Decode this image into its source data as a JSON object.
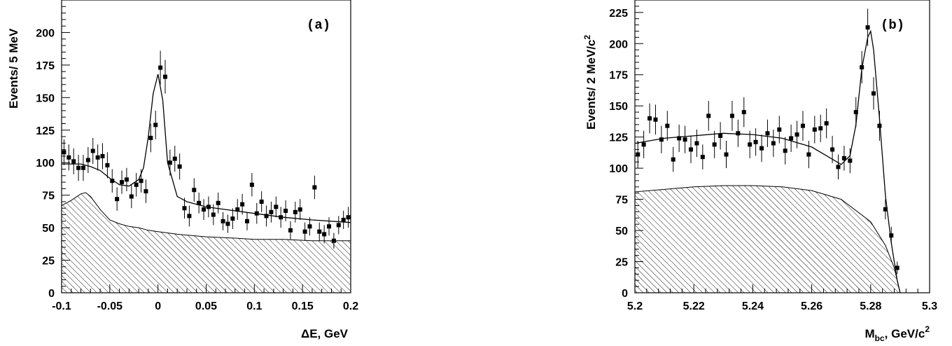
{
  "chart_data": [
    {
      "type": "scatter",
      "panel_label": "(a)",
      "xlabel": "ΔE, GeV",
      "ylabel": "Events/ 5 MeV",
      "xlim": [
        -0.1,
        0.2
      ],
      "ylim": [
        0,
        225
      ],
      "x_ticks": [
        -0.1,
        -0.05,
        0,
        0.05,
        0.1,
        0.15,
        0.2
      ],
      "x_tick_labels": [
        "-0.1",
        "-0.05",
        "0",
        "0.05",
        "0.1",
        "0.15",
        "0.2"
      ],
      "y_ticks": [
        0,
        25,
        50,
        75,
        100,
        125,
        150,
        175,
        200
      ],
      "y_tick_labels": [
        "0",
        "25",
        "50",
        "75",
        "100",
        "125",
        "150",
        "175",
        "200"
      ],
      "grid": false,
      "series": [
        {
          "kind": "points_with_errors",
          "x": [
            -0.0975,
            -0.0925,
            -0.0875,
            -0.0825,
            -0.0775,
            -0.0725,
            -0.0675,
            -0.0625,
            -0.0575,
            -0.0525,
            -0.0475,
            -0.0425,
            -0.0375,
            -0.0325,
            -0.0275,
            -0.0225,
            -0.0175,
            -0.0125,
            -0.0075,
            -0.0025,
            0.0025,
            0.0075,
            0.0125,
            0.0175,
            0.0225,
            0.0275,
            0.0325,
            0.0375,
            0.0425,
            0.0475,
            0.0525,
            0.0575,
            0.0625,
            0.0675,
            0.0725,
            0.0775,
            0.0825,
            0.0875,
            0.0925,
            0.0975,
            0.1025,
            0.1075,
            0.1125,
            0.1175,
            0.1225,
            0.1275,
            0.1325,
            0.1375,
            0.1425,
            0.1475,
            0.1525,
            0.1575,
            0.1625,
            0.1675,
            0.1725,
            0.1775,
            0.1825,
            0.1875,
            0.1925,
            0.1975
          ],
          "y": [
            108,
            104,
            101,
            96,
            96,
            102,
            109,
            104,
            105,
            98,
            86,
            72,
            85,
            87,
            74,
            83,
            86,
            78,
            119,
            129,
            173,
            166,
            100,
            103,
            97,
            65,
            59,
            79,
            69,
            64,
            66,
            60,
            69,
            55,
            53,
            57,
            64,
            68,
            55,
            83,
            61,
            70,
            59,
            62,
            66,
            58,
            63,
            48,
            62,
            64,
            47,
            51,
            81,
            47,
            45,
            51,
            40,
            52,
            56,
            58
          ],
          "yerr": [
            10,
            10,
            10,
            10,
            10,
            10,
            10,
            10,
            10,
            10,
            9,
            9,
            9,
            9,
            9,
            9,
            9,
            9,
            11,
            11,
            13,
            13,
            10,
            10,
            10,
            8,
            8,
            9,
            8,
            8,
            8,
            8,
            8,
            7,
            7,
            8,
            8,
            8,
            7,
            9,
            8,
            8,
            8,
            8,
            8,
            8,
            8,
            7,
            8,
            8,
            7,
            7,
            9,
            7,
            7,
            7,
            6,
            7,
            7,
            8
          ]
        },
        {
          "kind": "fit_curve",
          "x": [
            -0.1,
            -0.09,
            -0.08,
            -0.07,
            -0.06,
            -0.05,
            -0.04,
            -0.03,
            -0.02,
            -0.015,
            -0.01,
            -0.005,
            0,
            0.005,
            0.01,
            0.02,
            0.03,
            0.05,
            0.07,
            0.1,
            0.13,
            0.16,
            0.2
          ],
          "y": [
            99,
            99,
            99,
            97,
            94,
            88,
            83,
            82,
            87,
            96,
            120,
            153,
            168,
            148,
            100,
            74,
            70,
            66,
            64,
            61,
            58,
            56,
            54
          ]
        },
        {
          "kind": "hatched_background",
          "x": [
            -0.1,
            -0.09,
            -0.08,
            -0.075,
            -0.07,
            -0.06,
            -0.05,
            -0.04,
            -0.03,
            -0.02,
            -0.01,
            0,
            0.02,
            0.05,
            0.08,
            0.1,
            0.13,
            0.16,
            0.2
          ],
          "y": [
            67,
            71,
            76,
            77,
            74,
            64,
            56,
            53,
            51,
            50,
            48,
            47,
            45,
            43,
            42,
            41,
            41,
            40,
            40
          ]
        }
      ]
    },
    {
      "type": "scatter",
      "panel_label": "(b)",
      "xlabel": "M",
      "xlabel_sub": "bc",
      "xlabel_rest": ", GeV/c",
      "xlabel_sup": "2",
      "ylabel": "Events/ 2 MeV/c",
      "ylabel_sup": "2",
      "xlim": [
        5.2,
        5.3
      ],
      "ylim": [
        0,
        235
      ],
      "x_ticks": [
        5.2,
        5.22,
        5.24,
        5.26,
        5.28,
        5.3
      ],
      "x_tick_labels": [
        "5.2",
        "5.22",
        "5.24",
        "5.26",
        "5.28",
        "5.3"
      ],
      "y_ticks": [
        0,
        25,
        50,
        75,
        100,
        125,
        150,
        175,
        200,
        225
      ],
      "y_tick_labels": [
        "0",
        "25",
        "50",
        "75",
        "100",
        "125",
        "150",
        "175",
        "200",
        "225"
      ],
      "grid": false,
      "series": [
        {
          "kind": "points_with_errors",
          "x": [
            5.201,
            5.203,
            5.205,
            5.207,
            5.209,
            5.211,
            5.213,
            5.215,
            5.217,
            5.219,
            5.221,
            5.223,
            5.225,
            5.227,
            5.229,
            5.231,
            5.233,
            5.235,
            5.237,
            5.239,
            5.241,
            5.243,
            5.245,
            5.247,
            5.249,
            5.251,
            5.253,
            5.255,
            5.257,
            5.259,
            5.261,
            5.263,
            5.265,
            5.267,
            5.269,
            5.271,
            5.273,
            5.275,
            5.277,
            5.279,
            5.281,
            5.283,
            5.285,
            5.287,
            5.289
          ],
          "y": [
            111,
            119,
            140,
            139,
            123,
            134,
            107,
            124,
            123,
            115,
            120,
            109,
            142,
            119,
            126,
            111,
            142,
            128,
            145,
            119,
            121,
            116,
            128,
            120,
            131,
            114,
            124,
            127,
            134,
            111,
            131,
            132,
            136,
            115,
            101,
            108,
            106,
            145,
            181,
            213,
            160,
            134,
            67,
            46,
            20
          ],
          "yerr": [
            11,
            11,
            12,
            12,
            11,
            12,
            10,
            11,
            11,
            11,
            11,
            10,
            12,
            11,
            11,
            11,
            12,
            11,
            12,
            11,
            11,
            11,
            11,
            11,
            11,
            11,
            11,
            11,
            12,
            11,
            11,
            11,
            12,
            11,
            10,
            10,
            10,
            12,
            13,
            15,
            13,
            12,
            8,
            7,
            5
          ]
        },
        {
          "kind": "fit_curve",
          "x": [
            5.2,
            5.21,
            5.22,
            5.23,
            5.24,
            5.25,
            5.26,
            5.265,
            5.27,
            5.273,
            5.275,
            5.277,
            5.279,
            5.28,
            5.281,
            5.283,
            5.285,
            5.287,
            5.289,
            5.29
          ],
          "y": [
            120,
            124,
            126,
            128,
            127,
            124,
            117,
            110,
            103,
            110,
            135,
            180,
            205,
            210,
            195,
            140,
            78,
            40,
            10,
            0
          ]
        },
        {
          "kind": "hatched_background",
          "x": [
            5.2,
            5.21,
            5.22,
            5.23,
            5.24,
            5.25,
            5.26,
            5.27,
            5.28,
            5.285,
            5.288,
            5.29
          ],
          "y": [
            81,
            83,
            85,
            86,
            86,
            85,
            82,
            75,
            57,
            38,
            20,
            0
          ]
        }
      ]
    }
  ]
}
